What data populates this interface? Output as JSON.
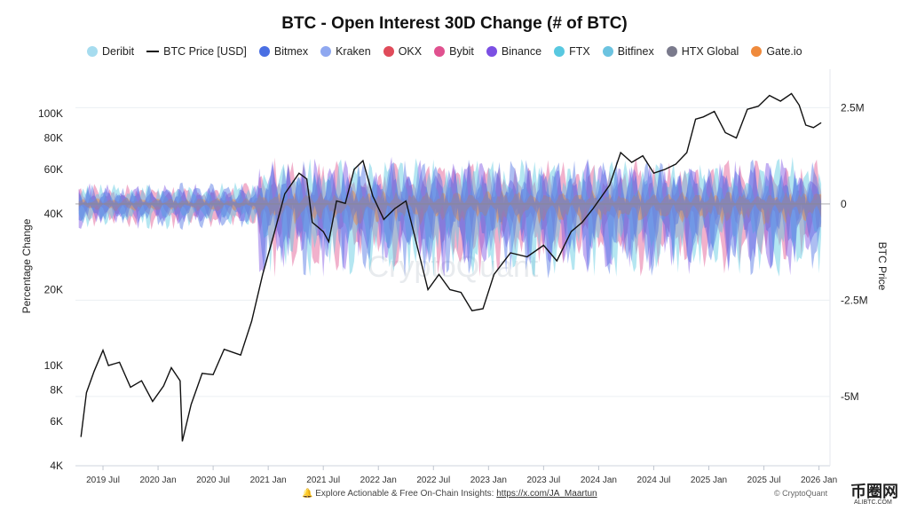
{
  "chart_data": {
    "type": "area",
    "title": "BTC - Open Interest 30D Change (# of BTC)",
    "ylabel_left": "Percentage Change",
    "ylabel_right": "BTC Price",
    "y_left_scale": "log",
    "y_left_ticks": [
      "100K",
      "80K",
      "60K",
      "40K",
      "20K",
      "10K",
      "8K",
      "6K",
      "4K"
    ],
    "y_left_tick_values": [
      100000,
      80000,
      60000,
      40000,
      20000,
      10000,
      8000,
      6000,
      4000
    ],
    "y_right_ticks": [
      "2.5M",
      "0",
      "-2.5M",
      "-5M"
    ],
    "y_right_tick_values": [
      2500000,
      0,
      -2500000,
      -5000000
    ],
    "x_ticks": [
      "2019 Jul",
      "2020 Jan",
      "2020 Jul",
      "2021 Jan",
      "2021 Jul",
      "2022 Jan",
      "2022 Jul",
      "2023 Jan",
      "2023 Jul",
      "2024 Jan",
      "2024 Jul",
      "2025 Jan",
      "2025 Jul",
      "2026 Jan"
    ],
    "x_tick_values": [
      2019.5,
      2020.0,
      2020.5,
      2021.0,
      2021.5,
      2022.0,
      2022.5,
      2023.0,
      2023.5,
      2024.0,
      2024.5,
      2025.0,
      2025.5,
      2026.0
    ],
    "x_range": [
      2019.25,
      2026.1
    ],
    "legend_position": "top",
    "grid": true,
    "series": [
      {
        "name": "Deribit",
        "color": "#a6dcef"
      },
      {
        "name": "BTC Price [USD]",
        "color": "#111111"
      },
      {
        "name": "Bitmex",
        "color": "#4a6fe3"
      },
      {
        "name": "Kraken",
        "color": "#8fa8f0"
      },
      {
        "name": "OKX",
        "color": "#e04b5a"
      },
      {
        "name": "Bybit",
        "color": "#e0518f"
      },
      {
        "name": "Binance",
        "color": "#7b4fe3"
      },
      {
        "name": "FTX",
        "color": "#58c8e0"
      },
      {
        "name": "Bitfinex",
        "color": "#6cc3e0"
      },
      {
        "name": "HTX Global",
        "color": "#7a7a8c"
      },
      {
        "name": "Gate.io",
        "color": "#ef8a3c"
      }
    ],
    "btc_price_points": [
      [
        2019.3,
        5200
      ],
      [
        2019.35,
        7800
      ],
      [
        2019.42,
        9500
      ],
      [
        2019.5,
        11500
      ],
      [
        2019.55,
        10000
      ],
      [
        2019.65,
        10300
      ],
      [
        2019.75,
        8200
      ],
      [
        2019.85,
        8700
      ],
      [
        2019.95,
        7200
      ],
      [
        2020.05,
        8300
      ],
      [
        2020.12,
        9800
      ],
      [
        2020.2,
        8700
      ],
      [
        2020.22,
        5000
      ],
      [
        2020.3,
        7000
      ],
      [
        2020.4,
        9300
      ],
      [
        2020.5,
        9200
      ],
      [
        2020.6,
        11600
      ],
      [
        2020.75,
        11000
      ],
      [
        2020.85,
        15000
      ],
      [
        2020.95,
        23000
      ],
      [
        2021.05,
        33000
      ],
      [
        2021.15,
        48000
      ],
      [
        2021.28,
        58000
      ],
      [
        2021.35,
        55000
      ],
      [
        2021.4,
        37000
      ],
      [
        2021.5,
        34000
      ],
      [
        2021.55,
        31000
      ],
      [
        2021.62,
        45000
      ],
      [
        2021.7,
        44000
      ],
      [
        2021.78,
        60000
      ],
      [
        2021.86,
        65000
      ],
      [
        2021.95,
        47000
      ],
      [
        2022.05,
        38000
      ],
      [
        2022.15,
        42000
      ],
      [
        2022.25,
        45000
      ],
      [
        2022.35,
        30000
      ],
      [
        2022.45,
        20000
      ],
      [
        2022.55,
        23000
      ],
      [
        2022.65,
        20000
      ],
      [
        2022.75,
        19500
      ],
      [
        2022.85,
        16500
      ],
      [
        2022.95,
        16800
      ],
      [
        2023.05,
        23000
      ],
      [
        2023.2,
        28000
      ],
      [
        2023.35,
        27000
      ],
      [
        2023.5,
        30000
      ],
      [
        2023.62,
        26000
      ],
      [
        2023.75,
        34000
      ],
      [
        2023.85,
        37000
      ],
      [
        2023.95,
        42000
      ],
      [
        2024.1,
        52000
      ],
      [
        2024.2,
        70000
      ],
      [
        2024.3,
        64000
      ],
      [
        2024.4,
        68000
      ],
      [
        2024.5,
        58000
      ],
      [
        2024.6,
        60000
      ],
      [
        2024.7,
        63000
      ],
      [
        2024.8,
        70000
      ],
      [
        2024.88,
        95000
      ],
      [
        2024.95,
        97000
      ],
      [
        2025.05,
        102000
      ],
      [
        2025.15,
        84000
      ],
      [
        2025.25,
        80000
      ],
      [
        2025.35,
        104000
      ],
      [
        2025.45,
        107000
      ],
      [
        2025.55,
        118000
      ],
      [
        2025.65,
        112000
      ],
      [
        2025.75,
        120000
      ],
      [
        2025.82,
        108000
      ],
      [
        2025.88,
        90000
      ],
      [
        2025.95,
        88000
      ],
      [
        2026.02,
        92000
      ]
    ]
  },
  "footer": {
    "text": "Explore Actionable & Free On-Chain Insights: ",
    "link": "https://x.com/JA_Maartun",
    "copyright": "© CryptoQuant"
  },
  "watermark": "CryptoQuant",
  "logo": {
    "text": "币圈网",
    "sub": "ALIBTC.COM"
  }
}
